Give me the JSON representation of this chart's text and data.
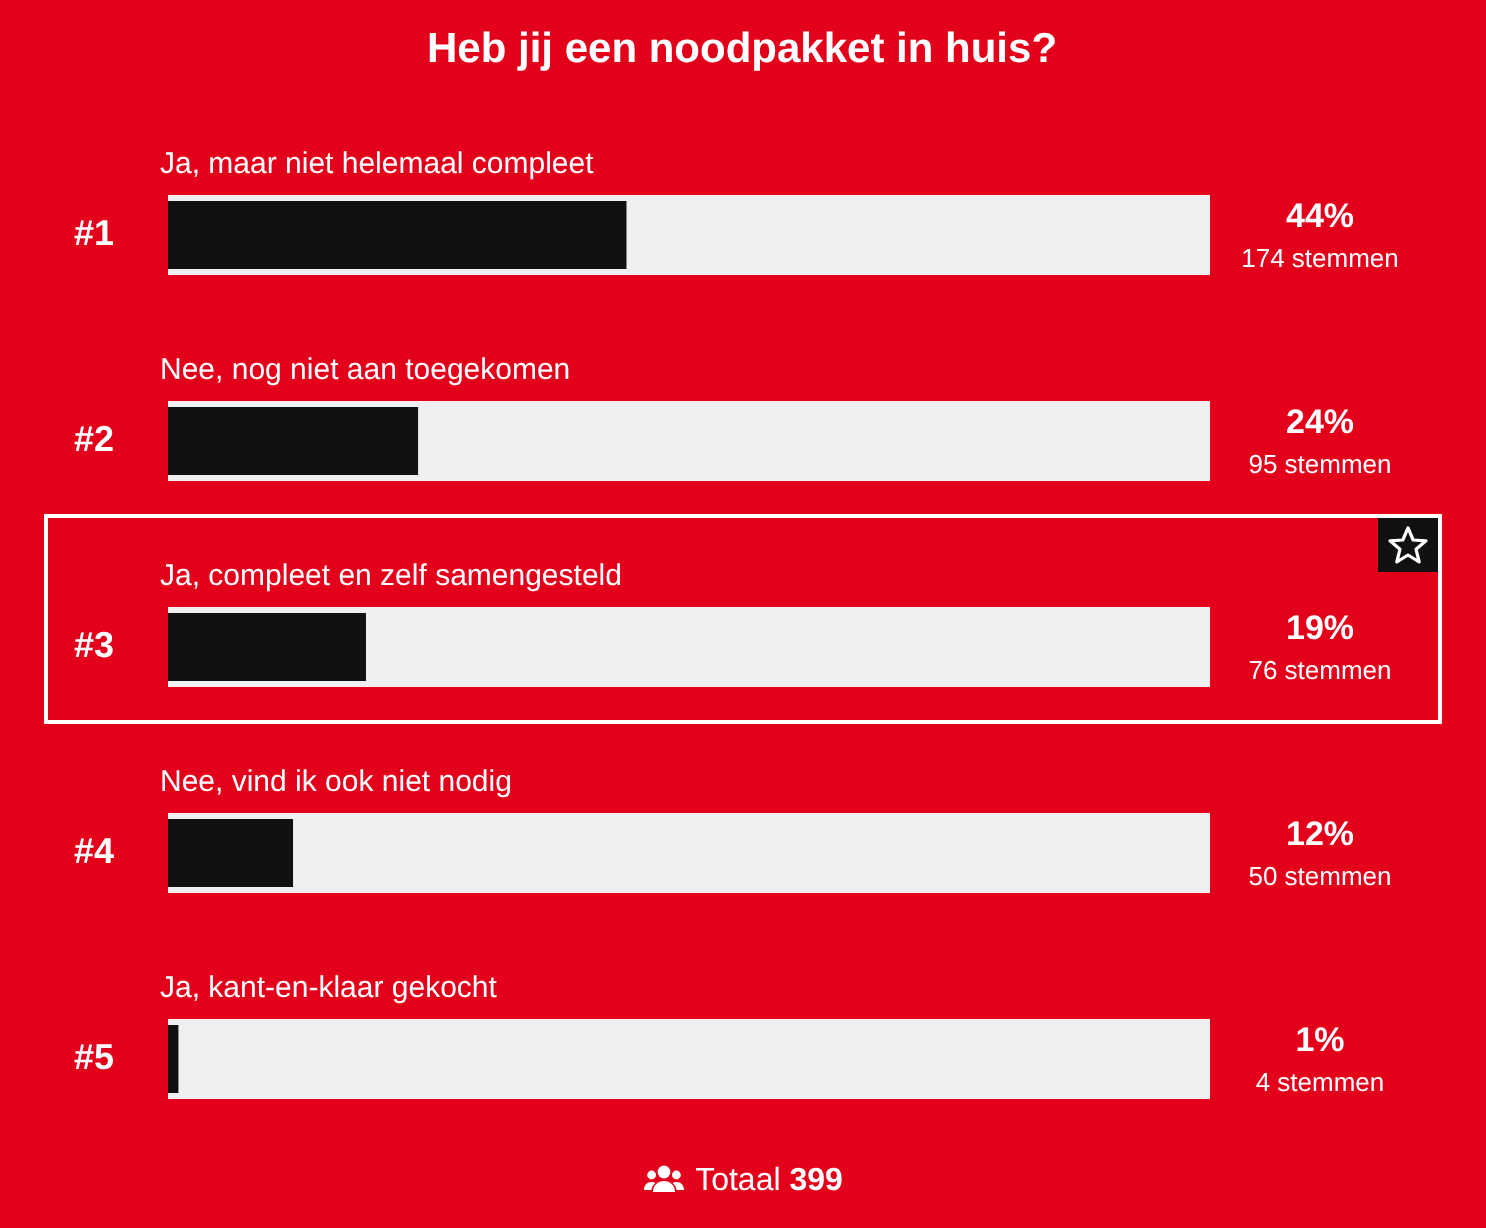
{
  "chart_data": {
    "type": "bar",
    "orientation": "horizontal",
    "title": "Heb jij een noodpakket in huis?",
    "categories": [
      "Ja, maar niet helemaal compleet",
      "Nee, nog niet aan toegekomen",
      "Ja, compleet en zelf samengesteld",
      "Nee, vind ik ook niet nodig",
      "Ja, kant-en-klaar gekocht"
    ],
    "values": [
      44,
      24,
      19,
      12,
      1
    ],
    "value_labels": [
      "44%",
      "24%",
      "19%",
      "12%",
      "1%"
    ],
    "color": "#111111",
    "xlim": [
      0,
      100
    ],
    "tick_labels": false,
    "annotations": [
      "#1",
      "#2",
      "#3",
      "#4",
      "#5",
      "174 stemmen",
      "95 stemmen",
      "76 stemmen",
      "50 stemmen",
      "4 stemmen",
      "Totaal 399"
    ]
  }
}
